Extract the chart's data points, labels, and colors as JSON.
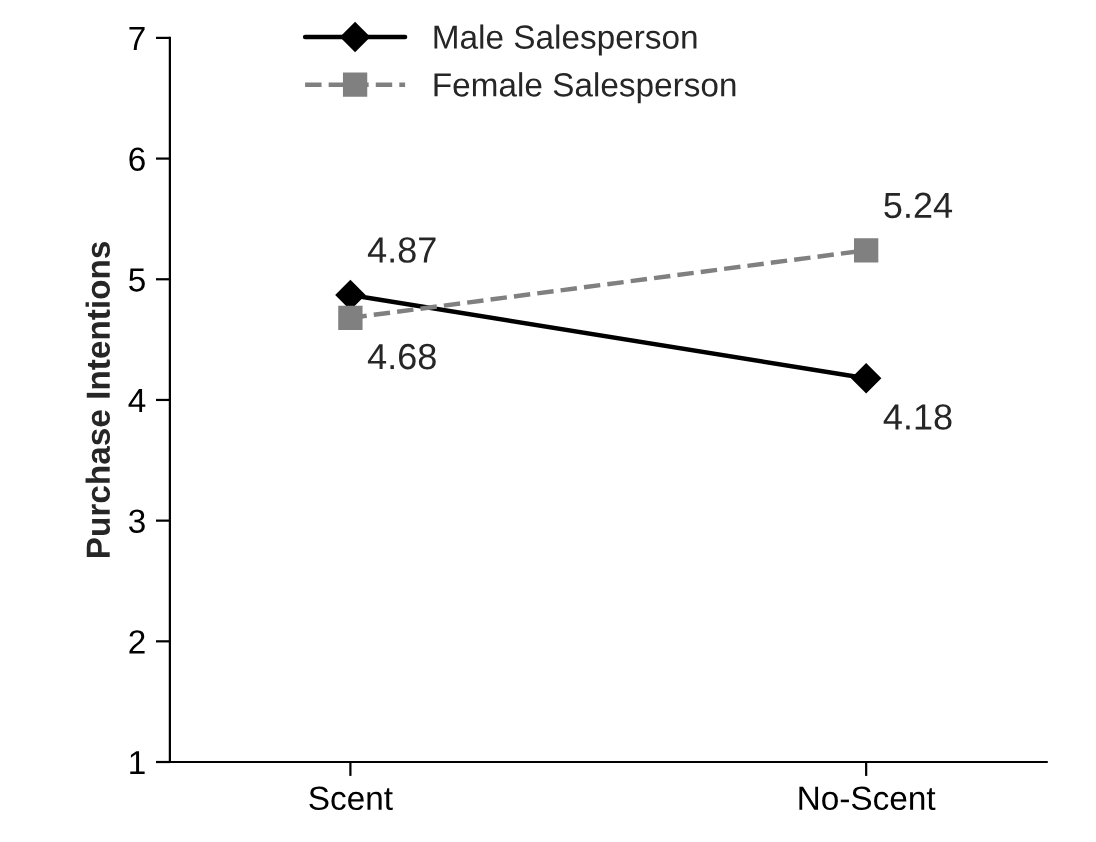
{
  "chart_data": {
    "type": "line",
    "ylabel": "Purchase Intentions",
    "categories": [
      "Scent",
      "No-Scent"
    ],
    "series": [
      {
        "name": "Male Salesperson",
        "color": "#000000",
        "values": [
          4.87,
          4.18
        ],
        "marker": "diamond",
        "line_style": "solid"
      },
      {
        "name": "Female Salesperson",
        "color": "#808080",
        "values": [
          4.68,
          5.24
        ],
        "marker": "square",
        "line_style": "dashed"
      }
    ],
    "ylim": [
      1,
      7
    ],
    "yticks": [
      1,
      2,
      3,
      4,
      5,
      6,
      7
    ],
    "data_labels": true,
    "grid": false,
    "legend": "top left"
  }
}
